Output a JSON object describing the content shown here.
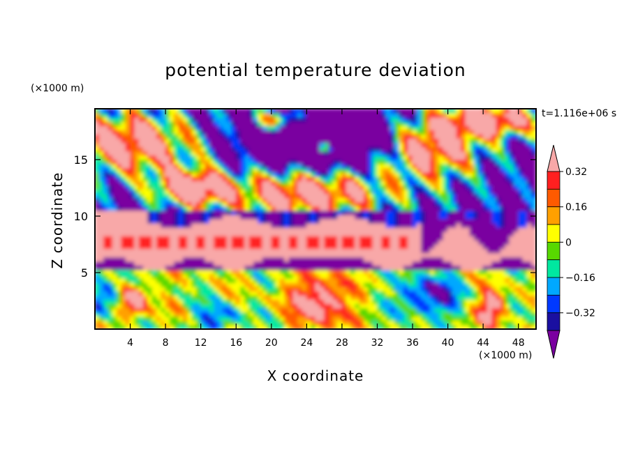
{
  "chart_data": {
    "type": "heatmap",
    "title": "potential temperature deviation",
    "xlabel": "X coordinate",
    "ylabel": "Z coordinate",
    "x_unit_label": "(×1000 m)",
    "y_unit_label": "(×1000 m)",
    "time_label": "t=1.116e+06 s",
    "xlim": [
      0,
      50
    ],
    "ylim": [
      0,
      19.5
    ],
    "x_ticks": [
      4,
      8,
      12,
      16,
      20,
      24,
      28,
      32,
      36,
      40,
      44,
      48
    ],
    "y_ticks": [
      5,
      10,
      15
    ],
    "colorbar": {
      "levels": [
        -0.4,
        -0.32,
        -0.24,
        -0.16,
        -0.08,
        0,
        0.08,
        0.16,
        0.24,
        0.32,
        0.4
      ],
      "tick_labels": [
        "0.32",
        "0.16",
        "0",
        "−0.16",
        "−0.32"
      ],
      "tick_values": [
        0.32,
        0.16,
        0,
        -0.16,
        -0.32
      ],
      "colors": [
        "#7a00a0",
        "#1a0fa0",
        "#0039ff",
        "#00a8ff",
        "#00e8a0",
        "#58d800",
        "#ffff00",
        "#ffa000",
        "#ff5a00",
        "#ff2020",
        "#f8a8a8"
      ],
      "extend": "both"
    },
    "regions": [
      {
        "x": [
          0,
          50
        ],
        "z": [
          0,
          1.5
        ],
        "value": "mixed / mostly warm-neutral"
      },
      {
        "x": [
          22,
          30
        ],
        "z": [
          0,
          5
        ],
        "value": 0.28
      },
      {
        "x": [
          0,
          44
        ],
        "z": [
          5.5,
          10.5
        ],
        "value": 0.4
      },
      {
        "x": [
          0,
          50
        ],
        "z": [
          7,
          8
        ],
        "value": 0.3
      },
      {
        "x": [
          14,
          30
        ],
        "z": [
          13,
          19.5
        ],
        "value": -0.4
      },
      {
        "x": [
          0,
          12
        ],
        "z": [
          15,
          19.5
        ],
        "value": 0.4
      }
    ]
  }
}
